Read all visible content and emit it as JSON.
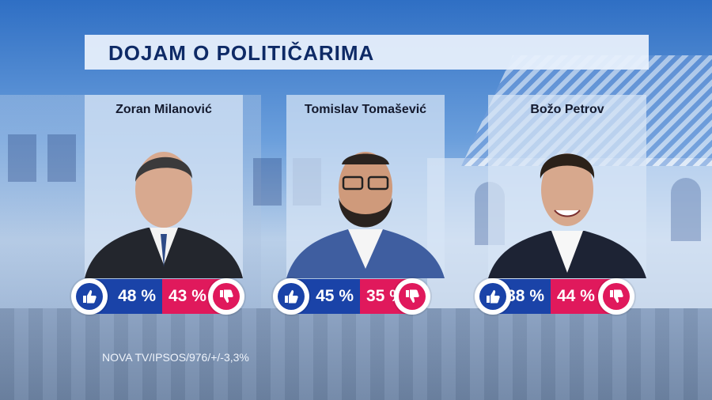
{
  "title": "DOJAM O POLITIČARIMA",
  "source": "NOVA TV/IPSOS/976/+/-3,3%",
  "colors": {
    "positive": "#1a43a8",
    "negative": "#e0195c",
    "title_text": "#0e2a66"
  },
  "icons": {
    "positive": "thumbs-up-icon",
    "negative": "thumbs-down-icon"
  },
  "chart_data": {
    "type": "bar",
    "categories": [
      "Zoran Milanović",
      "Tomislav Tomašević",
      "Božo Petrov"
    ],
    "series": [
      {
        "values": [
          48,
          45,
          38
        ],
        "labels": [
          "48 %",
          "45 %",
          "38 %"
        ],
        "color": "#1a43a8"
      },
      {
        "values": [
          43,
          35,
          44
        ],
        "labels": [
          "43 %",
          "35 %",
          "44 %"
        ],
        "color": "#e0195c"
      }
    ]
  }
}
